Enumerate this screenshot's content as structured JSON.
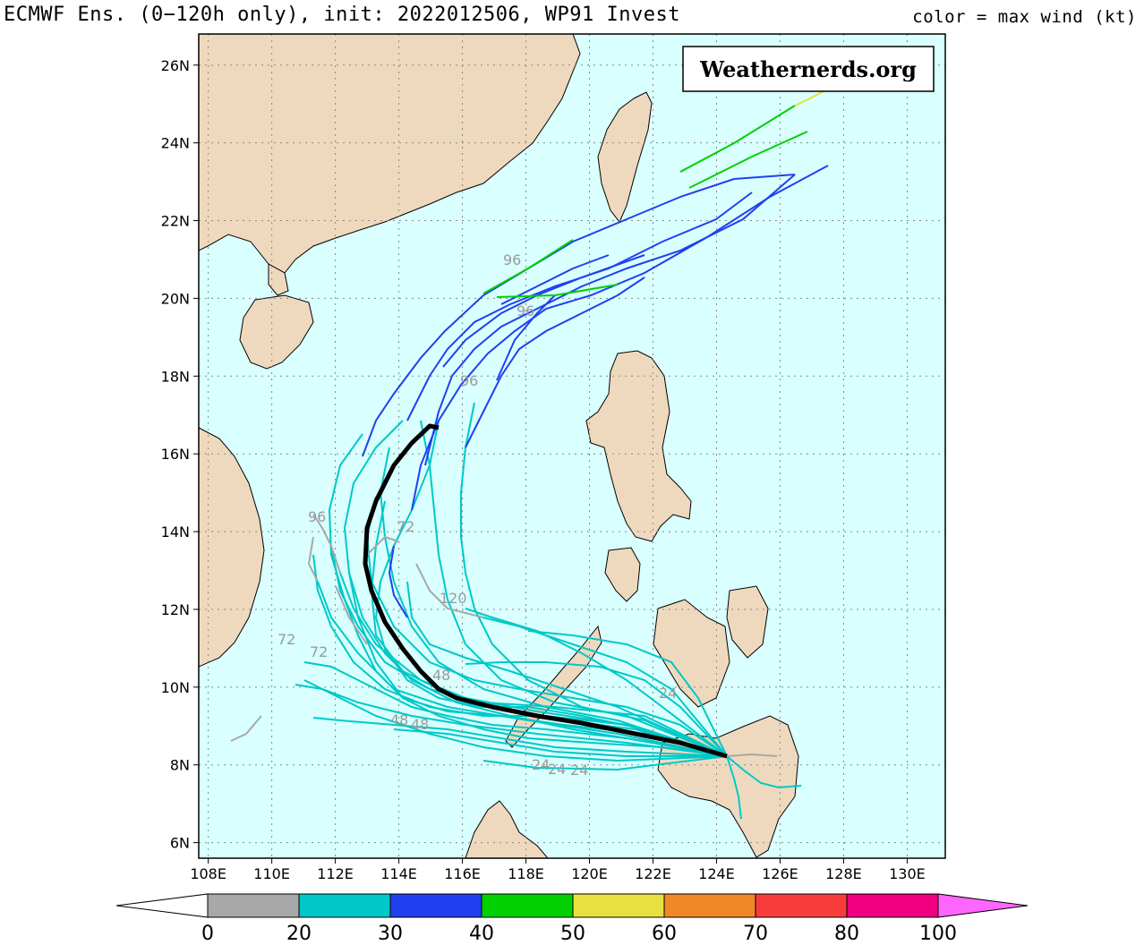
{
  "header": {
    "title": "ECMWF Ens. (0−120h only), init: 2022012506, WP91 Invest",
    "color_note": "color = max wind (kt)"
  },
  "brand": {
    "text": "Weathernerds.org"
  },
  "map": {
    "lon_range": [
      107.7,
      131.2
    ],
    "lat_range": [
      5.6,
      26.8
    ],
    "x_ticks": [
      "108E",
      "110E",
      "112E",
      "114E",
      "116E",
      "118E",
      "120E",
      "122E",
      "124E",
      "126E",
      "128E",
      "130E"
    ],
    "y_ticks": [
      "6N",
      "8N",
      "10N",
      "12N",
      "14N",
      "16N",
      "18N",
      "20N",
      "22N",
      "24N",
      "26N"
    ],
    "land_color": "#efd9be",
    "ocean_color": "#d9ffff",
    "grid": "dotted"
  },
  "colorbar": {
    "labels": [
      "0",
      "20",
      "30",
      "40",
      "50",
      "60",
      "70",
      "80",
      "100"
    ],
    "colors": [
      "#a8a8a8",
      "#00c8c8",
      "#2040f0",
      "#00d000",
      "#e8e040",
      "#f08828",
      "#f83c3c",
      "#f00080",
      "#ff66ff"
    ]
  },
  "hour_labels": [
    "96",
    "96",
    "96",
    "96",
    "72",
    "72",
    "72",
    "120",
    "48",
    "48",
    "48",
    "24",
    "24",
    "24",
    "24"
  ],
  "tracks": {
    "mean_track_color": "#000000"
  }
}
